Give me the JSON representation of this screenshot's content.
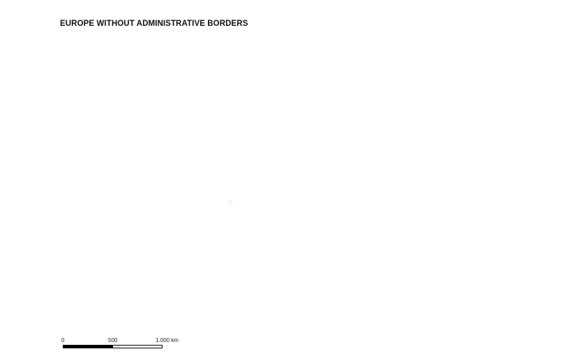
{
  "map": {
    "title": "EUROPE WITHOUT ADMINISTRATIVE BORDERS"
  },
  "scale_bar": {
    "labels": [
      "0",
      "500",
      "1.000 km"
    ],
    "colors": {
      "segment_1": "#000000",
      "segment_2": "#ffffff"
    }
  }
}
